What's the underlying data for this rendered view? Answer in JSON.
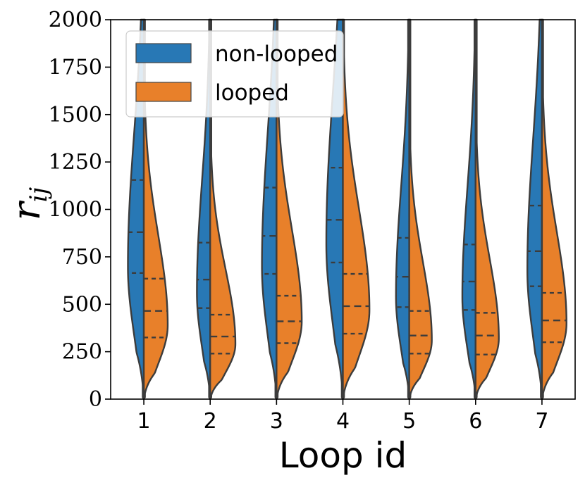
{
  "chart_data": {
    "type": "violin",
    "title": "",
    "xlabel": "Loop id",
    "ylabel": {
      "base": "r",
      "sub": "ij"
    },
    "ylim": [
      0,
      2000
    ],
    "yticks": [
      0,
      250,
      500,
      750,
      1000,
      1250,
      1500,
      1750,
      2000
    ],
    "categories": [
      "1",
      "2",
      "3",
      "4",
      "5",
      "6",
      "7"
    ],
    "series": [
      {
        "name": "non-looped",
        "color": "#2878b5",
        "stats": [
          {
            "mode": 700,
            "width": 0.24,
            "q1": 665,
            "median": 880,
            "q3": 1155
          },
          {
            "mode": 560,
            "width": 0.2,
            "q1": 480,
            "median": 630,
            "q3": 825
          },
          {
            "mode": 700,
            "width": 0.22,
            "q1": 660,
            "median": 860,
            "q3": 1115
          },
          {
            "mode": 820,
            "width": 0.25,
            "q1": 720,
            "median": 945,
            "q3": 1220
          },
          {
            "mode": 540,
            "width": 0.2,
            "q1": 485,
            "median": 645,
            "q3": 850
          },
          {
            "mode": 540,
            "width": 0.2,
            "q1": 470,
            "median": 620,
            "q3": 815
          },
          {
            "mode": 680,
            "width": 0.22,
            "q1": 595,
            "median": 780,
            "q3": 1020
          }
        ]
      },
      {
        "name": "looped",
        "color": "#e8802a",
        "stats": [
          {
            "mode": 390,
            "width": 0.36,
            "q1": 325,
            "median": 465,
            "q3": 635
          },
          {
            "mode": 290,
            "width": 0.38,
            "q1": 240,
            "median": 330,
            "q3": 445
          },
          {
            "mode": 410,
            "width": 0.38,
            "q1": 295,
            "median": 410,
            "q3": 545
          },
          {
            "mode": 470,
            "width": 0.4,
            "q1": 345,
            "median": 490,
            "q3": 660
          },
          {
            "mode": 310,
            "width": 0.34,
            "q1": 240,
            "median": 335,
            "q3": 465
          },
          {
            "mode": 320,
            "width": 0.35,
            "q1": 235,
            "median": 335,
            "q3": 455
          },
          {
            "mode": 400,
            "width": 0.37,
            "q1": 300,
            "median": 415,
            "q3": 560
          }
        ]
      }
    ],
    "legend": {
      "position": "top-left",
      "entries": [
        {
          "label": "non-looped",
          "color": "#2878b5"
        },
        {
          "label": "looped",
          "color": "#e8802a"
        }
      ]
    },
    "grid": false
  }
}
